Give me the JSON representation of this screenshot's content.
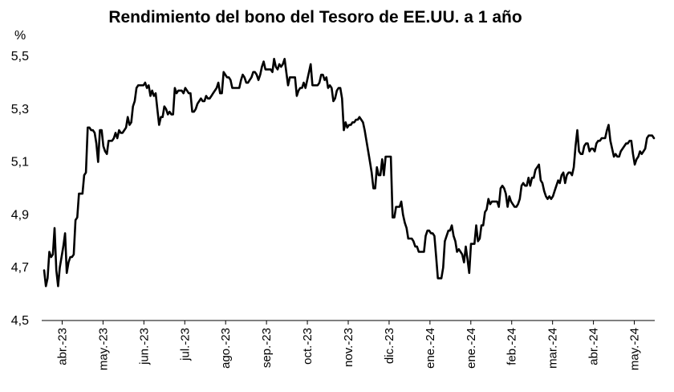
{
  "chart_data": {
    "type": "line",
    "title": "Rendimiento del bono del Tesoro de EE.UU. a 1 año",
    "ylabel": "%",
    "ylim": [
      4.5,
      5.5
    ],
    "yticks": [
      "4,5",
      "4,7",
      "4,9",
      "5,1",
      "5,3",
      "5,5"
    ],
    "ytick_values": [
      4.5,
      4.7,
      4.9,
      5.1,
      5.3,
      5.5
    ],
    "xticks": [
      "abr.-23",
      "may.-23",
      "jun.-23",
      "jul.-23",
      "ago.-23",
      "sep.-23",
      "oct.-23",
      "nov.-23",
      "dic.-23",
      "ene.-24",
      "ene.-24",
      "feb.-24",
      "mar.-24",
      "abr.-24",
      "may.-24"
    ],
    "grid": false,
    "legend": "none",
    "line_color": "#000000",
    "series": [
      {
        "values": [
          4.69,
          4.63,
          4.66,
          4.76,
          4.74,
          4.75,
          4.85,
          4.69,
          4.63,
          4.7,
          4.74,
          4.78,
          4.83,
          4.68,
          4.72,
          4.74,
          4.74,
          4.75,
          4.88,
          4.89,
          4.98,
          4.98,
          4.98,
          5.05,
          5.06,
          5.23,
          5.23,
          5.22,
          5.22,
          5.21,
          5.17,
          5.1,
          5.22,
          5.22,
          5.16,
          5.14,
          5.13,
          5.18,
          5.18,
          5.18,
          5.19,
          5.21,
          5.19,
          5.22,
          5.21,
          5.21,
          5.22,
          5.23,
          5.27,
          5.24,
          5.25,
          5.31,
          5.33,
          5.38,
          5.39,
          5.39,
          5.39,
          5.39,
          5.4,
          5.38,
          5.39,
          5.35,
          5.37,
          5.35,
          5.36,
          5.3,
          5.24,
          5.27,
          5.27,
          5.31,
          5.3,
          5.28,
          5.29,
          5.28,
          5.28,
          5.38,
          5.36,
          5.37,
          5.37,
          5.37,
          5.36,
          5.38,
          5.37,
          5.36,
          5.36,
          5.29,
          5.29,
          5.3,
          5.32,
          5.33,
          5.34,
          5.33,
          5.33,
          5.35,
          5.34,
          5.34,
          5.35,
          5.36,
          5.37,
          5.38,
          5.4,
          5.36,
          5.36,
          5.44,
          5.43,
          5.42,
          5.42,
          5.41,
          5.38,
          5.38,
          5.38,
          5.38,
          5.38,
          5.41,
          5.43,
          5.42,
          5.4,
          5.4,
          5.41,
          5.42,
          5.44,
          5.44,
          5.43,
          5.41,
          5.43,
          5.46,
          5.48,
          5.45,
          5.45,
          5.45,
          5.45,
          5.44,
          5.49,
          5.46,
          5.45,
          5.47,
          5.46,
          5.47,
          5.49,
          5.44,
          5.39,
          5.42,
          5.42,
          5.42,
          5.42,
          5.35,
          5.37,
          5.38,
          5.38,
          5.4,
          5.38,
          5.41,
          5.44,
          5.47,
          5.39,
          5.39,
          5.39,
          5.39,
          5.4,
          5.43,
          5.43,
          5.41,
          5.42,
          5.38,
          5.39,
          5.38,
          5.33,
          5.34,
          5.37,
          5.38,
          5.38,
          5.34,
          5.22,
          5.25,
          5.23,
          5.24,
          5.24,
          5.25,
          5.25,
          5.26,
          5.26,
          5.27,
          5.26,
          5.25,
          5.22,
          5.18,
          5.14,
          5.1,
          5.06,
          5.0,
          5.0,
          5.08,
          5.05,
          5.05,
          5.11,
          5.05,
          5.12,
          5.12,
          5.12,
          5.12,
          4.89,
          4.89,
          4.93,
          4.93,
          4.93,
          4.95,
          4.9,
          4.87,
          4.85,
          4.81,
          4.81,
          4.81,
          4.8,
          4.78,
          4.78,
          4.76,
          4.76,
          4.76,
          4.76,
          4.82,
          4.84,
          4.84,
          4.83,
          4.83,
          4.82,
          4.74,
          4.66,
          4.66,
          4.66,
          4.7,
          4.8,
          4.82,
          4.84,
          4.84,
          4.86,
          4.82,
          4.8,
          4.76,
          4.77,
          4.76,
          4.75,
          4.72,
          4.78,
          4.73,
          4.68,
          4.79,
          4.79,
          4.79,
          4.86,
          4.8,
          4.81,
          4.86,
          4.86,
          4.91,
          4.92,
          4.96,
          4.94,
          4.95,
          4.95,
          4.95,
          4.95,
          4.93,
          5.0,
          5.01,
          5.0,
          4.98,
          4.93,
          4.97,
          4.95,
          4.94,
          4.93,
          4.93,
          4.94,
          4.96,
          5.01,
          5.02,
          5.01,
          5.01,
          5.04,
          5.01,
          5.04,
          5.04,
          5.07,
          5.08,
          5.09,
          5.03,
          5.02,
          4.99,
          4.97,
          4.96,
          4.97,
          4.96,
          4.97,
          4.99,
          5.01,
          5.03,
          5.02,
          5.05,
          5.06,
          5.02,
          5.05,
          5.06,
          5.06,
          5.05,
          5.08,
          5.16,
          5.22,
          5.14,
          5.13,
          5.13,
          5.16,
          5.17,
          5.17,
          5.14,
          5.15,
          5.15,
          5.14,
          5.17,
          5.18,
          5.18,
          5.19,
          5.19,
          5.19,
          5.22,
          5.24,
          5.18,
          5.15,
          5.12,
          5.13,
          5.12,
          5.12,
          5.14,
          5.15,
          5.16,
          5.17,
          5.17,
          5.18,
          5.18,
          5.13,
          5.09,
          5.11,
          5.12,
          5.14,
          5.13,
          5.14,
          5.15,
          5.19,
          5.2,
          5.2,
          5.2,
          5.19
        ]
      }
    ]
  }
}
